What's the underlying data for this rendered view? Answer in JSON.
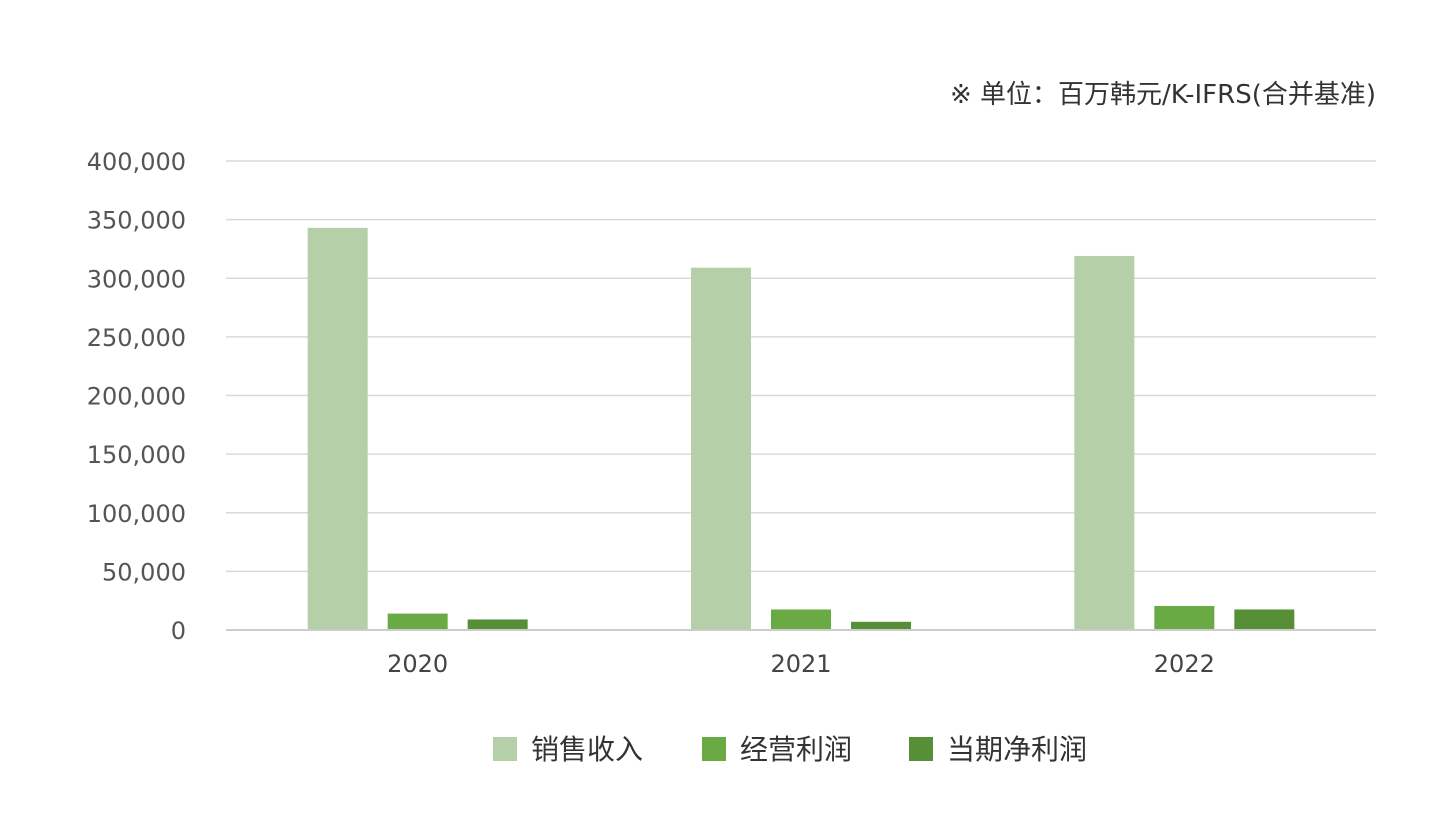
{
  "chart_data": {
    "type": "bar",
    "title": "",
    "unit_note": "※ 单位：百万韩元/K-IFRS(合并基准)",
    "xlabel": "",
    "ylabel": "",
    "categories": [
      "2020",
      "2021",
      "2022"
    ],
    "series": [
      {
        "name": "销售收入",
        "values": [
          343000,
          309000,
          319000
        ],
        "color": "#b5cfa8"
      },
      {
        "name": "经营利润",
        "values": [
          14000,
          17500,
          20500
        ],
        "color": "#6aaa44"
      },
      {
        "name": "当期净利润",
        "values": [
          9000,
          7000,
          17500
        ],
        "color": "#568f36"
      }
    ],
    "ylim": [
      0,
      400000
    ],
    "yticks": [
      0,
      50000,
      100000,
      150000,
      200000,
      250000,
      300000,
      350000,
      400000
    ],
    "ytick_labels": [
      "0",
      "50,000",
      "100,000",
      "150,000",
      "200,000",
      "250,000",
      "300,000",
      "350,000",
      "400,000"
    ],
    "grid": true,
    "legend_position": "bottom"
  }
}
